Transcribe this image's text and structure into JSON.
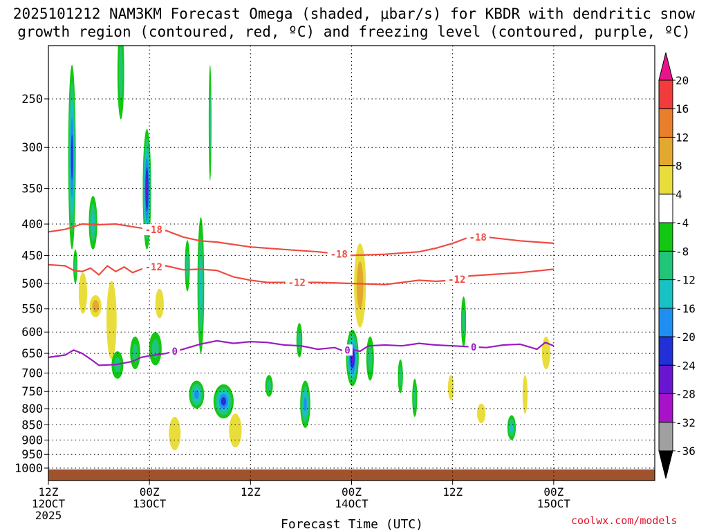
{
  "chart_data": {
    "type": "heatmap",
    "title_line1": "2025101212 NAM3KM Forecast Omega (shaded, μbar/s) for KBDR with dendritic snow",
    "title_line2": "growth region (contoured, red, ºC) and freezing level (contoured, purple, ºC)",
    "xlabel": "Forecast Time (UTC)",
    "credit": "coolwx.com/models",
    "x_range_hours": [
      0,
      72
    ],
    "y_range_hpa": [
      1000,
      200
    ],
    "y_ticks": [
      250,
      300,
      350,
      400,
      450,
      500,
      550,
      600,
      650,
      700,
      750,
      800,
      850,
      900,
      950,
      1000
    ],
    "y_tick_labels": [
      "250",
      "300",
      "350",
      "400",
      "450",
      "500",
      "550",
      "600",
      "650",
      "700",
      "750",
      "800",
      "850",
      "900",
      "950",
      "1000"
    ],
    "x_ticks": [
      {
        "hour": 0,
        "line1": "12Z",
        "line2": "12OCT",
        "line3": "2025"
      },
      {
        "hour": 12,
        "line1": "00Z",
        "line2": "13OCT",
        "line3": ""
      },
      {
        "hour": 24,
        "line1": "12Z",
        "line2": "",
        "line3": ""
      },
      {
        "hour": 36,
        "line1": "00Z",
        "line2": "14OCT",
        "line3": ""
      },
      {
        "hour": 48,
        "line1": "12Z",
        "line2": "",
        "line3": ""
      },
      {
        "hour": 60,
        "line1": "00Z",
        "line2": "15OCT",
        "line3": ""
      }
    ],
    "colorbar": {
      "label_values": [
        "20",
        "16",
        "12",
        "8",
        "4",
        "-4",
        "-8",
        "-12",
        "-16",
        "-20",
        "-24",
        "-28",
        "-32",
        "-36"
      ],
      "bins": [
        {
          "lo": 20,
          "hi": 24,
          "color": "#e8158a"
        },
        {
          "lo": 16,
          "hi": 20,
          "color": "#f23b3b"
        },
        {
          "lo": 12,
          "hi": 16,
          "color": "#e97f2b"
        },
        {
          "lo": 8,
          "hi": 12,
          "color": "#e3a92e"
        },
        {
          "lo": 4,
          "hi": 8,
          "color": "#e9dd3c"
        },
        {
          "lo": -4,
          "hi": 4,
          "color": "#ffffff"
        },
        {
          "lo": -8,
          "hi": -4,
          "color": "#12c812"
        },
        {
          "lo": -12,
          "hi": -8,
          "color": "#20c57a"
        },
        {
          "lo": -16,
          "hi": -12,
          "color": "#18c2c2"
        },
        {
          "lo": -20,
          "hi": -16,
          "color": "#1e8ff0"
        },
        {
          "lo": -24,
          "hi": -20,
          "color": "#2230d8"
        },
        {
          "lo": -28,
          "hi": -24,
          "color": "#6a16d0"
        },
        {
          "lo": -32,
          "hi": -28,
          "color": "#a812c8"
        },
        {
          "lo": -36,
          "hi": -32,
          "color": "#a0a0a0"
        },
        {
          "lo": -40,
          "hi": -36,
          "color": "#000000"
        }
      ]
    },
    "contours": [
      {
        "name": "-18C",
        "label": "-18",
        "color": "#f04a40",
        "points": [
          [
            0,
            412
          ],
          [
            2,
            408
          ],
          [
            4,
            400
          ],
          [
            6,
            401
          ],
          [
            8,
            400
          ],
          [
            10,
            404
          ],
          [
            12,
            408
          ],
          [
            14,
            410
          ],
          [
            16,
            420
          ],
          [
            18,
            426
          ],
          [
            20,
            428
          ],
          [
            24,
            436
          ],
          [
            28,
            440
          ],
          [
            32,
            444
          ],
          [
            36,
            450
          ],
          [
            40,
            448
          ],
          [
            44,
            444
          ],
          [
            46,
            438
          ],
          [
            48,
            430
          ],
          [
            50,
            420
          ],
          [
            52,
            420
          ],
          [
            56,
            426
          ],
          [
            60,
            430
          ]
        ],
        "label_hours": [
          12.5,
          34.5,
          51
        ]
      },
      {
        "name": "-12C",
        "label": "-12",
        "color": "#f04a40",
        "points": [
          [
            0,
            466
          ],
          [
            2,
            468
          ],
          [
            3,
            476
          ],
          [
            4,
            478
          ],
          [
            5,
            472
          ],
          [
            6,
            484
          ],
          [
            7,
            468
          ],
          [
            8,
            478
          ],
          [
            9,
            470
          ],
          [
            10,
            480
          ],
          [
            11,
            474
          ],
          [
            12,
            470
          ],
          [
            14,
            468
          ],
          [
            16,
            475
          ],
          [
            18,
            474
          ],
          [
            20,
            476
          ],
          [
            22,
            488
          ],
          [
            24,
            494
          ],
          [
            26,
            498
          ],
          [
            28,
            498
          ],
          [
            32,
            498
          ],
          [
            36,
            500
          ],
          [
            40,
            502
          ],
          [
            42,
            498
          ],
          [
            44,
            494
          ],
          [
            46,
            496
          ],
          [
            48,
            494
          ],
          [
            50,
            486
          ],
          [
            52,
            484
          ],
          [
            56,
            480
          ],
          [
            60,
            474
          ]
        ],
        "label_hours": [
          12.5,
          29.5,
          48.5
        ]
      },
      {
        "name": "0C",
        "label": "0",
        "color": "#9a1cc0",
        "points": [
          [
            0,
            660
          ],
          [
            2,
            654
          ],
          [
            3,
            642
          ],
          [
            4,
            650
          ],
          [
            5,
            664
          ],
          [
            6,
            680
          ],
          [
            8,
            678
          ],
          [
            10,
            670
          ],
          [
            11,
            660
          ],
          [
            12,
            656
          ],
          [
            14,
            650
          ],
          [
            16,
            640
          ],
          [
            18,
            628
          ],
          [
            20,
            620
          ],
          [
            22,
            626
          ],
          [
            24,
            622
          ],
          [
            26,
            624
          ],
          [
            28,
            630
          ],
          [
            30,
            632
          ],
          [
            32,
            640
          ],
          [
            34,
            636
          ],
          [
            35,
            644
          ],
          [
            36,
            640
          ],
          [
            37,
            645
          ],
          [
            38,
            632
          ],
          [
            40,
            630
          ],
          [
            42,
            632
          ],
          [
            44,
            626
          ],
          [
            46,
            630
          ],
          [
            48,
            632
          ],
          [
            50,
            634
          ],
          [
            52,
            636
          ],
          [
            54,
            630
          ],
          [
            56,
            628
          ],
          [
            58,
            640
          ],
          [
            59,
            624
          ],
          [
            60,
            632
          ]
        ],
        "label_hours": [
          15,
          35.5,
          50.5
        ]
      }
    ],
    "omega_blobs": [
      {
        "hour": 2.8,
        "p_center": 330,
        "p_extent": 220,
        "width_h": 0.9,
        "value": -20
      },
      {
        "hour": 3.2,
        "p_center": 470,
        "p_extent": 60,
        "width_h": 0.5,
        "value": -8
      },
      {
        "hour": 4.1,
        "p_center": 520,
        "p_extent": 80,
        "width_h": 1.0,
        "value": 4
      },
      {
        "hour": 5.3,
        "p_center": 400,
        "p_extent": 80,
        "width_h": 1.0,
        "value": -12
      },
      {
        "hour": 5.6,
        "p_center": 545,
        "p_extent": 45,
        "width_h": 1.4,
        "value": 8
      },
      {
        "hour": 7.5,
        "p_center": 580,
        "p_extent": 170,
        "width_h": 1.2,
        "value": 4
      },
      {
        "hour": 8.2,
        "p_center": 680,
        "p_extent": 70,
        "width_h": 1.4,
        "value": -8
      },
      {
        "hour": 8.6,
        "p_center": 230,
        "p_extent": 80,
        "width_h": 0.8,
        "value": -8
      },
      {
        "hour": 11.7,
        "p_center": 360,
        "p_extent": 160,
        "width_h": 1.0,
        "value": -24
      },
      {
        "hour": 10.3,
        "p_center": 650,
        "p_extent": 80,
        "width_h": 1.2,
        "value": -8
      },
      {
        "hour": 12.7,
        "p_center": 640,
        "p_extent": 80,
        "width_h": 1.5,
        "value": -8
      },
      {
        "hour": 13.2,
        "p_center": 540,
        "p_extent": 60,
        "width_h": 1.0,
        "value": 4
      },
      {
        "hour": 16.5,
        "p_center": 470,
        "p_extent": 90,
        "width_h": 0.6,
        "value": -8
      },
      {
        "hour": 18.1,
        "p_center": 520,
        "p_extent": 260,
        "width_h": 0.8,
        "value": -12
      },
      {
        "hour": 17.6,
        "p_center": 760,
        "p_extent": 80,
        "width_h": 1.8,
        "value": -16
      },
      {
        "hour": 20.8,
        "p_center": 780,
        "p_extent": 100,
        "width_h": 2.4,
        "value": -20
      },
      {
        "hour": 19.2,
        "p_center": 280,
        "p_extent": 120,
        "width_h": 0.3,
        "value": -8
      },
      {
        "hour": 22.2,
        "p_center": 870,
        "p_extent": 110,
        "width_h": 1.5,
        "value": 4
      },
      {
        "hour": 15.0,
        "p_center": 880,
        "p_extent": 110,
        "width_h": 1.4,
        "value": 4
      },
      {
        "hour": 26.2,
        "p_center": 735,
        "p_extent": 60,
        "width_h": 0.9,
        "value": -8
      },
      {
        "hour": 29.8,
        "p_center": 620,
        "p_extent": 80,
        "width_h": 0.7,
        "value": -8
      },
      {
        "hour": 30.5,
        "p_center": 790,
        "p_extent": 140,
        "width_h": 1.2,
        "value": -16
      },
      {
        "hour": 36.1,
        "p_center": 665,
        "p_extent": 140,
        "width_h": 1.5,
        "value": -24
      },
      {
        "hour": 37.0,
        "p_center": 510,
        "p_extent": 160,
        "width_h": 1.4,
        "value": 8
      },
      {
        "hour": 38.2,
        "p_center": 665,
        "p_extent": 110,
        "width_h": 0.9,
        "value": -8
      },
      {
        "hour": 41.8,
        "p_center": 710,
        "p_extent": 90,
        "width_h": 0.6,
        "value": -8
      },
      {
        "hour": 43.5,
        "p_center": 770,
        "p_extent": 110,
        "width_h": 0.6,
        "value": -8
      },
      {
        "hour": 47.8,
        "p_center": 740,
        "p_extent": 70,
        "width_h": 0.7,
        "value": 4
      },
      {
        "hour": 49.3,
        "p_center": 580,
        "p_extent": 110,
        "width_h": 0.6,
        "value": -8
      },
      {
        "hour": 51.4,
        "p_center": 815,
        "p_extent": 60,
        "width_h": 1.0,
        "value": 4
      },
      {
        "hour": 55.0,
        "p_center": 860,
        "p_extent": 80,
        "width_h": 1.0,
        "value": -12
      },
      {
        "hour": 56.6,
        "p_center": 760,
        "p_extent": 110,
        "width_h": 0.6,
        "value": 4
      },
      {
        "hour": 59.1,
        "p_center": 650,
        "p_extent": 80,
        "width_h": 1.0,
        "value": 4
      }
    ],
    "surface_band": {
      "p_top": 1000,
      "p_bottom": 1025,
      "color": "#a0522d"
    }
  }
}
